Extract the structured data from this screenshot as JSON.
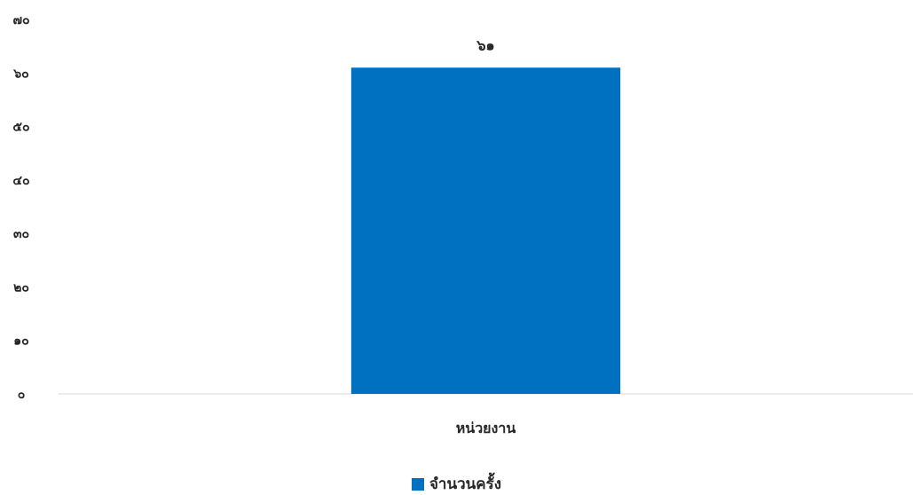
{
  "chart_data": {
    "type": "bar",
    "categories": [
      "หน่วยงาน"
    ],
    "series": [
      {
        "name": "จำนวนครั้ง",
        "values": [
          61
        ],
        "value_labels": [
          "๖๑"
        ],
        "color": "#0070C0"
      }
    ],
    "ylim": [
      0,
      70
    ],
    "yticks": [
      0,
      10,
      20,
      30,
      40,
      50,
      60,
      70
    ],
    "ytick_labels": [
      "๐",
      "๑๐",
      "๒๐",
      "๓๐",
      "๔๐",
      "๕๐",
      "๖๐",
      "๗๐"
    ],
    "grid": false,
    "legend_position": "bottom",
    "axis_color": "#d9d9d9"
  }
}
